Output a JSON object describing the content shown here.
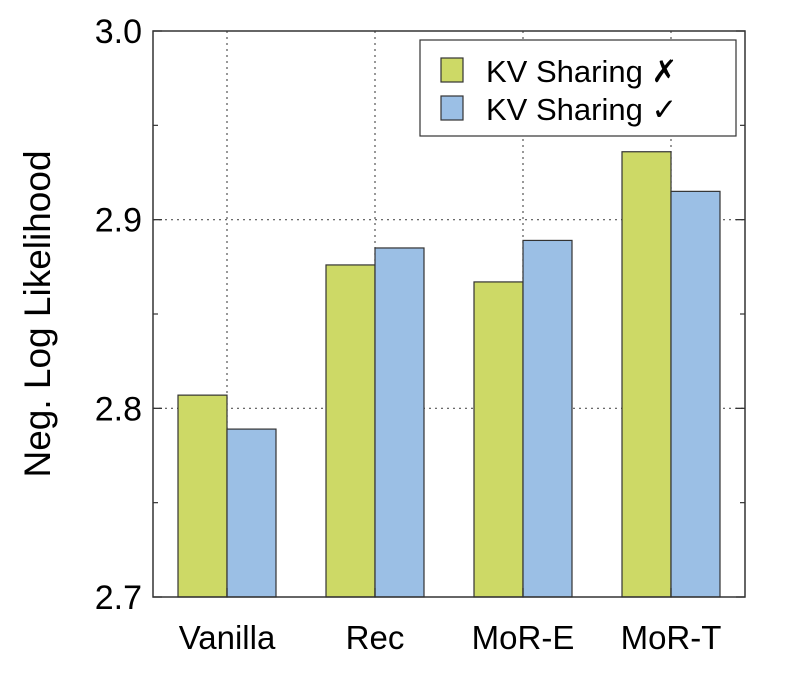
{
  "chart_data": {
    "type": "bar",
    "ylabel": "Neg. Log Likelihood",
    "xlabel": "",
    "ylim": [
      2.7,
      3.0
    ],
    "yticks": [
      2.7,
      2.8,
      2.9,
      3.0
    ],
    "ytick_labels": [
      "2.7",
      "2.8",
      "2.9",
      "3.0"
    ],
    "categories": [
      "Vanilla",
      "Rec",
      "MoR-E",
      "MoR-T"
    ],
    "series": [
      {
        "name": "KV Sharing ✗",
        "color": "#cdd966",
        "values": [
          2.807,
          2.876,
          2.867,
          2.936
        ]
      },
      {
        "name": "KV Sharing ✓",
        "color": "#9bbfe5",
        "values": [
          2.789,
          2.885,
          2.889,
          2.915
        ]
      }
    ],
    "grid": true,
    "legend_position": "top-right"
  }
}
